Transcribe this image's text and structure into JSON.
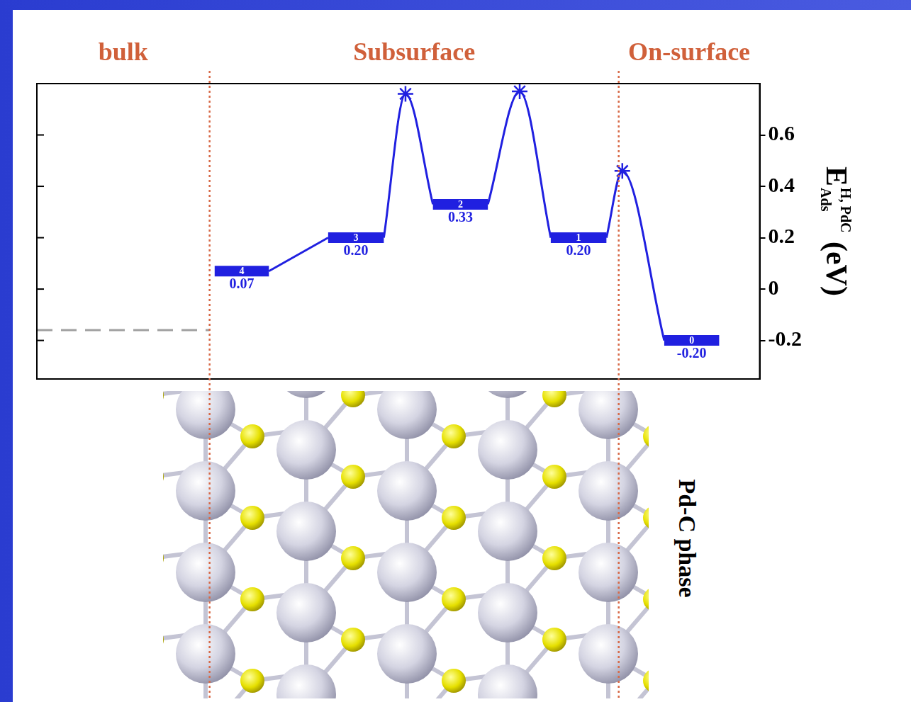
{
  "chart_data": {
    "type": "energy_profile",
    "color": "#2020e0",
    "xlim": [
      0,
      100
    ],
    "ylim": [
      -0.35,
      0.8
    ],
    "yticks": [
      -0.2,
      0,
      0.2,
      0.4,
      0.6
    ],
    "tick_labels": "y",
    "grid": false,
    "data_labels": true,
    "y_label": {
      "symbol": "E",
      "superscript": "H, PdC",
      "subscript": "Ads",
      "unit": "(eV)"
    },
    "regions": [
      {
        "label": "bulk",
        "from": 0,
        "to": 23.9
      },
      {
        "label": "Subsurface",
        "from": 23.9,
        "to": 80.5
      },
      {
        "label": "On-surface",
        "from": 80.5,
        "to": 100
      }
    ],
    "bulk_level": {
      "value": -0.16,
      "x": [
        0,
        23.9
      ],
      "line_style": "dashed",
      "color": "#a0a0a0"
    },
    "states": [
      {
        "label": "4",
        "x": [
          24.6,
          32.1
        ],
        "value": 0.07,
        "value_label": "0.07"
      },
      {
        "label": "3",
        "x": [
          40.3,
          48.0
        ],
        "value": 0.2,
        "value_label": "0.20"
      },
      {
        "label": "2",
        "x": [
          54.8,
          62.4
        ],
        "value": 0.33,
        "value_label": "0.33"
      },
      {
        "label": "1",
        "x": [
          71.1,
          78.8
        ],
        "value": 0.2,
        "value_label": "0.20"
      },
      {
        "label": "0",
        "x": [
          86.8,
          94.4
        ],
        "value": -0.2,
        "value_label": "-0.20"
      }
    ],
    "transition_states": [
      {
        "from": "3",
        "to": "2",
        "x": 51.0,
        "value": 0.76
      },
      {
        "from": "2",
        "to": "1",
        "x": 66.8,
        "value": 0.77
      },
      {
        "from": "1",
        "to": "0",
        "x": 81.0,
        "value": 0.46
      }
    ],
    "marker": "star",
    "structure": {
      "label": "Pd-C phase"
    }
  }
}
